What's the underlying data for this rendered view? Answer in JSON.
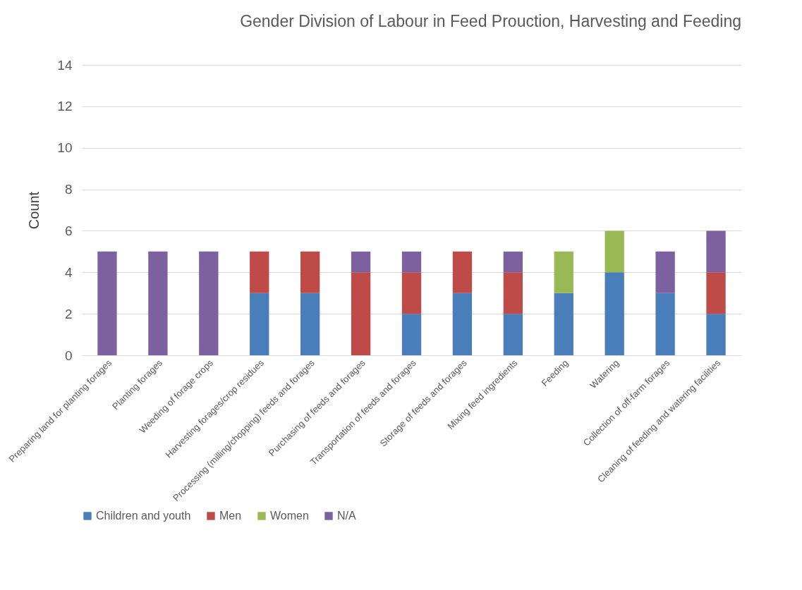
{
  "chart_data": {
    "type": "bar",
    "stacked": true,
    "title": "Gender Division of Labour in Feed Prouction, Harvesting and Feeding",
    "ylabel": "Count",
    "categories": [
      "Preparing land for planting forages",
      "Planting forages",
      "Weeding of forage crops",
      "Harvesting forages/crop residues",
      "Processing (milling/chopping) feeds and forages",
      "Purchasing of feeds and forages",
      "Transportation of feeds and forages",
      "Storage of feeds and forages",
      "Mixing feed ingredients",
      "Feeding",
      "Watering",
      "Collection of off-farm forages",
      "Cleaning of feeding and watering facilities"
    ],
    "series": [
      {
        "name": "Children and youth",
        "color": "#4a7ebb",
        "values": [
          0,
          0,
          0,
          3,
          3,
          0,
          2,
          3,
          2,
          3,
          4,
          3,
          2
        ]
      },
      {
        "name": "Men",
        "color": "#be4b48",
        "values": [
          0,
          0,
          0,
          2,
          2,
          4,
          2,
          2,
          2,
          0,
          0,
          0,
          2
        ]
      },
      {
        "name": "Women",
        "color": "#98b954",
        "values": [
          0,
          0,
          0,
          0,
          0,
          0,
          0,
          0,
          0,
          2,
          2,
          0,
          0
        ]
      },
      {
        "name": "N/A",
        "color": "#7d60a0",
        "values": [
          5,
          5,
          5,
          0,
          0,
          1,
          1,
          0,
          1,
          0,
          0,
          2,
          2
        ]
      }
    ],
    "ylim": [
      0,
      14
    ],
    "yticks": [
      0,
      2,
      4,
      6,
      8,
      10,
      12,
      14
    ],
    "grid": "y",
    "legend": "bottom"
  }
}
